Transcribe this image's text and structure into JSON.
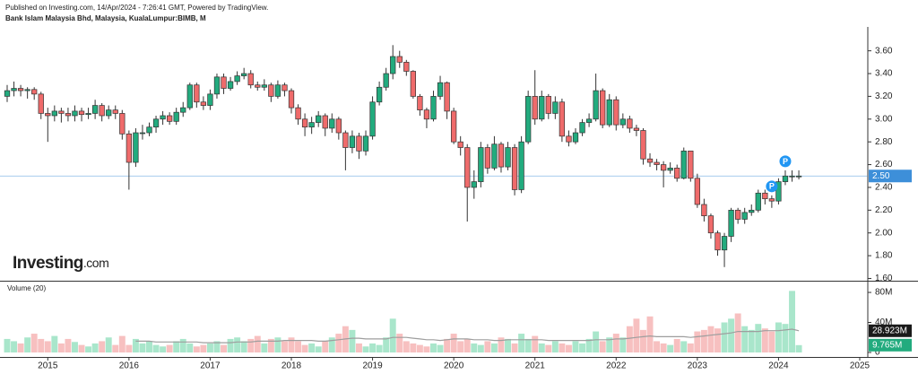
{
  "chart_data": {
    "type": "candlestick",
    "published": "Published on Investing.com, 14/Apr/2024 - 7:26:41 GMT, Powered by TradingView.",
    "title": "Bank Islam Malaysia Bhd, Malaysia, KualaLumpur:BIMB, M",
    "logo": "Investing",
    "logo_suffix": ".com",
    "volume_title": "Volume (20)",
    "categories": [
      null,
      null,
      null,
      null,
      null,
      null,
      "2015",
      null,
      null,
      null,
      null,
      null,
      null,
      null,
      null,
      null,
      null,
      null,
      "2016",
      null,
      null,
      null,
      null,
      null,
      null,
      null,
      null,
      null,
      null,
      null,
      "2017",
      null,
      null,
      null,
      null,
      null,
      null,
      null,
      null,
      null,
      null,
      null,
      "2018",
      null,
      null,
      null,
      null,
      null,
      null,
      null,
      null,
      null,
      null,
      null,
      "2019",
      null,
      null,
      null,
      null,
      null,
      null,
      null,
      null,
      null,
      null,
      null,
      "2020",
      null,
      null,
      null,
      null,
      null,
      null,
      null,
      null,
      null,
      null,
      null,
      "2021",
      null,
      null,
      null,
      null,
      null,
      null,
      null,
      null,
      null,
      null,
      null,
      "2022",
      null,
      null,
      null,
      null,
      null,
      null,
      null,
      null,
      null,
      null,
      null,
      "2023",
      null,
      null,
      null,
      null,
      null,
      null,
      null,
      null,
      null,
      null,
      null,
      "2024",
      null,
      null,
      null,
      null,
      null,
      null,
      null,
      null,
      null,
      null,
      null,
      "2025"
    ],
    "open": [
      3.2,
      3.25,
      3.27,
      3.25,
      3.26,
      3.22,
      3.05,
      3.03,
      3.07,
      3.05,
      3.03,
      3.07,
      3.04,
      3.05,
      3.12,
      3.03,
      3.08,
      3.05,
      2.87,
      2.62,
      2.88,
      2.88,
      2.93,
      3.0,
      3.03,
      2.98,
      3.06,
      3.1,
      3.3,
      3.15,
      3.12,
      3.22,
      3.37,
      3.27,
      3.33,
      3.38,
      3.4,
      3.3,
      3.28,
      3.3,
      3.2,
      3.3,
      3.25,
      3.1,
      3.0,
      2.93,
      2.97,
      3.03,
      2.92,
      3.0,
      2.88,
      2.75,
      2.85,
      2.72,
      2.85,
      3.15,
      3.28,
      3.4,
      3.55,
      3.5,
      3.42,
      3.2,
      3.08,
      3.0,
      3.2,
      3.32,
      3.07,
      2.8,
      2.75,
      2.4,
      2.45,
      2.75,
      2.57,
      2.78,
      2.58,
      2.75,
      2.38,
      2.8,
      3.2,
      3.0,
      3.2,
      3.05,
      3.15,
      2.85,
      2.8,
      2.88,
      2.97,
      3.0,
      3.25,
      2.95,
      3.17,
      2.95,
      3.0,
      2.92,
      2.9,
      2.65,
      2.62,
      2.6,
      2.55,
      2.57,
      2.48,
      2.72,
      2.48,
      2.25,
      2.15,
      2.0,
      1.85,
      1.97,
      2.2,
      2.12,
      2.18,
      2.2,
      2.35,
      2.3,
      2.28,
      2.45,
      2.5,
      2.5,
      null,
      null,
      null,
      null,
      null,
      null,
      null,
      null,
      null
    ],
    "high": [
      3.3,
      3.33,
      3.3,
      3.28,
      3.28,
      3.24,
      3.1,
      3.12,
      3.1,
      3.1,
      3.12,
      3.1,
      3.1,
      3.17,
      3.14,
      3.12,
      3.12,
      3.08,
      2.9,
      2.92,
      2.95,
      2.97,
      3.03,
      3.07,
      3.06,
      3.1,
      3.15,
      3.32,
      3.32,
      3.2,
      3.26,
      3.4,
      3.4,
      3.37,
      3.42,
      3.45,
      3.43,
      3.33,
      3.35,
      3.32,
      3.34,
      3.32,
      3.27,
      3.13,
      3.05,
      3.02,
      3.07,
      3.05,
      3.05,
      3.02,
      2.9,
      2.9,
      2.88,
      2.9,
      3.2,
      3.33,
      3.45,
      3.65,
      3.6,
      3.52,
      3.43,
      3.22,
      3.1,
      3.25,
      3.38,
      3.33,
      3.1,
      2.85,
      2.78,
      2.55,
      2.8,
      2.78,
      2.85,
      2.8,
      2.8,
      2.78,
      2.85,
      3.25,
      3.43,
      3.25,
      3.22,
      3.2,
      3.18,
      2.9,
      2.92,
      3.0,
      3.05,
      3.4,
      3.27,
      3.22,
      3.2,
      3.05,
      3.03,
      2.95,
      2.92,
      2.7,
      2.65,
      2.63,
      2.62,
      2.6,
      2.75,
      2.72,
      2.52,
      2.3,
      2.17,
      2.02,
      2.0,
      2.22,
      2.22,
      2.22,
      2.25,
      2.38,
      2.38,
      2.33,
      2.48,
      2.55,
      2.55,
      2.55,
      null,
      null,
      null,
      null,
      null,
      null,
      null,
      null,
      null
    ],
    "low": [
      3.15,
      3.2,
      3.2,
      3.18,
      3.17,
      3.0,
      2.8,
      2.98,
      2.97,
      2.98,
      2.98,
      2.98,
      3.0,
      3.0,
      2.98,
      3.0,
      3.0,
      2.82,
      2.38,
      2.58,
      2.82,
      2.85,
      2.88,
      2.95,
      2.95,
      2.95,
      3.02,
      3.08,
      3.1,
      3.08,
      3.08,
      3.18,
      3.22,
      3.25,
      3.3,
      3.35,
      3.27,
      3.25,
      3.25,
      3.15,
      3.18,
      3.2,
      3.05,
      2.95,
      2.85,
      2.87,
      2.93,
      2.85,
      2.88,
      2.82,
      2.55,
      2.7,
      2.65,
      2.68,
      2.82,
      3.12,
      3.25,
      3.35,
      3.45,
      3.38,
      3.18,
      3.03,
      2.92,
      2.98,
      3.17,
      3.0,
      2.78,
      2.68,
      2.1,
      2.3,
      2.4,
      2.52,
      2.55,
      2.53,
      2.55,
      2.33,
      2.35,
      2.78,
      2.95,
      2.98,
      3.0,
      3.0,
      2.8,
      2.76,
      2.78,
      2.85,
      2.93,
      2.98,
      2.92,
      2.93,
      2.9,
      2.92,
      2.88,
      2.85,
      2.6,
      2.58,
      2.55,
      2.4,
      2.52,
      2.45,
      2.47,
      2.45,
      2.22,
      2.1,
      1.95,
      1.8,
      1.7,
      1.92,
      2.08,
      2.08,
      2.15,
      2.18,
      2.25,
      2.22,
      2.25,
      2.42,
      2.45,
      2.47,
      null,
      null,
      null,
      null,
      null,
      null,
      null,
      null,
      null
    ],
    "close": [
      3.25,
      3.27,
      3.25,
      3.26,
      3.22,
      3.05,
      3.03,
      3.07,
      3.05,
      3.03,
      3.07,
      3.04,
      3.05,
      3.12,
      3.03,
      3.08,
      3.05,
      2.87,
      2.62,
      2.88,
      2.88,
      2.93,
      3.0,
      3.03,
      2.98,
      3.06,
      3.1,
      3.3,
      3.15,
      3.12,
      3.22,
      3.37,
      3.27,
      3.33,
      3.38,
      3.4,
      3.3,
      3.28,
      3.3,
      3.2,
      3.3,
      3.25,
      3.1,
      3.0,
      2.93,
      2.97,
      3.03,
      2.92,
      3.0,
      2.88,
      2.75,
      2.85,
      2.72,
      2.85,
      3.15,
      3.28,
      3.4,
      3.55,
      3.5,
      3.42,
      3.2,
      3.08,
      3.0,
      3.2,
      3.32,
      3.07,
      2.8,
      2.75,
      2.4,
      2.45,
      2.75,
      2.57,
      2.78,
      2.58,
      2.75,
      2.38,
      2.8,
      3.2,
      3.0,
      3.2,
      3.05,
      3.15,
      2.85,
      2.8,
      2.88,
      2.97,
      3.0,
      3.25,
      2.95,
      3.17,
      2.95,
      3.0,
      2.92,
      2.9,
      2.65,
      2.62,
      2.6,
      2.55,
      2.57,
      2.48,
      2.72,
      2.48,
      2.25,
      2.15,
      2.0,
      1.85,
      1.97,
      2.2,
      2.12,
      2.18,
      2.2,
      2.35,
      2.3,
      2.28,
      2.45,
      2.5,
      2.5,
      2.5,
      null,
      null,
      null,
      null,
      null,
      null,
      null,
      null,
      null
    ],
    "volume": [
      18,
      15,
      12,
      20,
      25,
      18,
      15,
      22,
      12,
      18,
      14,
      10,
      8,
      12,
      15,
      20,
      10,
      22,
      10,
      18,
      12,
      15,
      10,
      8,
      10,
      15,
      18,
      12,
      8,
      10,
      12,
      15,
      10,
      18,
      20,
      15,
      18,
      22,
      12,
      18,
      20,
      15,
      20,
      15,
      10,
      12,
      8,
      15,
      20,
      25,
      35,
      30,
      12,
      8,
      12,
      10,
      20,
      45,
      25,
      15,
      12,
      10,
      8,
      12,
      10,
      18,
      25,
      15,
      18,
      12,
      10,
      15,
      12,
      20,
      18,
      12,
      25,
      18,
      22,
      12,
      10,
      15,
      12,
      10,
      15,
      12,
      18,
      28,
      15,
      20,
      25,
      20,
      35,
      45,
      30,
      48,
      15,
      12,
      10,
      18,
      15,
      12,
      28,
      30,
      35,
      32,
      40,
      45,
      52,
      35,
      30,
      38,
      32,
      28,
      40,
      38,
      82,
      9.765,
      null,
      null,
      null,
      null,
      null,
      null,
      null,
      null,
      null
    ],
    "volume_ma": [
      null,
      null,
      null,
      null,
      null,
      null,
      null,
      null,
      null,
      null,
      null,
      null,
      null,
      null,
      null,
      null,
      null,
      null,
      null,
      15,
      15,
      15,
      14,
      14,
      14,
      14,
      14,
      14,
      14,
      13,
      13,
      13,
      13,
      13,
      14,
      14,
      14,
      15,
      15,
      15,
      15,
      16,
      16,
      16,
      16,
      16,
      15,
      15,
      16,
      17,
      18,
      19,
      19,
      18,
      18,
      18,
      18,
      20,
      20,
      20,
      19,
      18,
      17,
      17,
      16,
      17,
      18,
      18,
      18,
      17,
      17,
      17,
      16,
      16,
      17,
      17,
      17,
      17,
      17,
      17,
      16,
      16,
      16,
      16,
      16,
      16,
      16,
      17,
      17,
      17,
      18,
      18,
      19,
      20,
      21,
      22,
      21,
      21,
      21,
      21,
      21,
      20,
      21,
      22,
      23,
      24,
      25,
      26,
      28,
      28,
      28,
      28,
      29,
      29,
      29,
      30,
      31,
      28.923,
      null,
      null,
      null,
      null,
      null,
      null,
      null,
      null,
      null
    ],
    "volume_ma_label": "28.923M",
    "volume_last_label": "9.765M",
    "events": [
      null,
      null,
      null,
      null,
      null,
      null,
      null,
      null,
      null,
      null,
      null,
      null,
      null,
      null,
      null,
      null,
      null,
      null,
      null,
      null,
      null,
      null,
      null,
      null,
      null,
      null,
      null,
      null,
      null,
      null,
      null,
      null,
      null,
      null,
      null,
      null,
      null,
      null,
      null,
      null,
      null,
      null,
      null,
      null,
      null,
      null,
      null,
      null,
      null,
      null,
      null,
      null,
      null,
      null,
      null,
      null,
      null,
      null,
      null,
      null,
      null,
      null,
      null,
      null,
      null,
      null,
      null,
      null,
      null,
      null,
      null,
      null,
      null,
      null,
      null,
      null,
      null,
      null,
      null,
      null,
      null,
      null,
      null,
      null,
      null,
      null,
      null,
      null,
      null,
      null,
      null,
      null,
      null,
      null,
      null,
      null,
      null,
      null,
      null,
      null,
      null,
      null,
      null,
      null,
      null,
      null,
      null,
      null,
      null,
      null,
      null,
      null,
      null,
      "P",
      null,
      "P",
      null,
      null,
      null,
      null,
      null,
      null,
      null,
      null,
      null,
      null,
      null
    ],
    "last_price": {
      "value": 2.5,
      "label": "2.50"
    },
    "up_color": "#22ab7e",
    "down_color": "#ef6b6b",
    "up_volume_color": "#a9e6cb",
    "down_volume_color": "#f7c0c0",
    "ma_color": "#9e9e9e",
    "last_price_color": "#3d8fd9",
    "ylim": [
      1.58,
      3.81
    ],
    "yticks": [
      {
        "value": 1.6,
        "label": "1.60"
      },
      {
        "value": 1.8,
        "label": "1.80"
      },
      {
        "value": 2.0,
        "label": "2.00"
      },
      {
        "value": 2.2,
        "label": "2.20"
      },
      {
        "value": 2.4,
        "label": "2.40"
      },
      {
        "value": 2.6,
        "label": "2.60"
      },
      {
        "value": 2.8,
        "label": "2.80"
      },
      {
        "value": 3.0,
        "label": "3.00"
      },
      {
        "value": 3.2,
        "label": "3.20"
      },
      {
        "value": 3.4,
        "label": "3.40"
      },
      {
        "value": 3.6,
        "label": "3.60"
      }
    ],
    "volume_ylim": [
      -6,
      92
    ],
    "volume_yticks": [
      0,
      {
        "value": 40,
        "label": "40M"
      },
      {
        "value": 80,
        "label": "80M"
      }
    ]
  }
}
